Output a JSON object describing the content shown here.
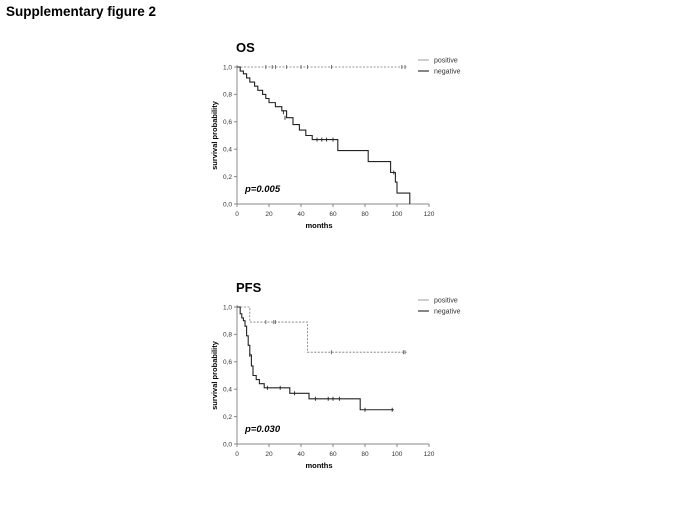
{
  "figure_title": "Supplementary figure 2",
  "chart_data": [
    {
      "type": "line",
      "title": "OS",
      "xlabel": "months",
      "ylabel": "survival probability",
      "xlim": [
        0,
        120
      ],
      "ylim": [
        0,
        1.0
      ],
      "x_ticks": [
        "0",
        "20",
        "40",
        "60",
        "80",
        "100",
        "120"
      ],
      "y_ticks": [
        "0,0",
        "0,2",
        "0,4",
        "0,6",
        "0,8",
        "1,0"
      ],
      "annotation": "p=0.005",
      "legend": [
        "positive",
        "negative"
      ],
      "legend_position": "top-right",
      "series": [
        {
          "name": "positive",
          "style": "dashed",
          "steps": [
            [
              0,
              1.0
            ],
            [
              106,
              1.0
            ]
          ],
          "censored": [
            [
              18,
              1.0
            ],
            [
              22,
              1.0
            ],
            [
              24,
              1.0
            ],
            [
              31,
              1.0
            ],
            [
              40,
              1.0
            ],
            [
              44,
              1.0
            ],
            [
              59,
              1.0
            ],
            [
              103,
              1.0
            ],
            [
              105,
              1.0
            ]
          ]
        },
        {
          "name": "negative",
          "style": "solid",
          "steps": [
            [
              0,
              1.0
            ],
            [
              2,
              0.97
            ],
            [
              4,
              0.95
            ],
            [
              6,
              0.92
            ],
            [
              8,
              0.89
            ],
            [
              11,
              0.86
            ],
            [
              13,
              0.83
            ],
            [
              16,
              0.8
            ],
            [
              18,
              0.77
            ],
            [
              20,
              0.74
            ],
            [
              24,
              0.71
            ],
            [
              28,
              0.68
            ],
            [
              31,
              0.63
            ],
            [
              35,
              0.58
            ],
            [
              39,
              0.54
            ],
            [
              43,
              0.5
            ],
            [
              47,
              0.47
            ],
            [
              58,
              0.47
            ],
            [
              63,
              0.39
            ],
            [
              81,
              0.39
            ],
            [
              82,
              0.31
            ],
            [
              95,
              0.31
            ],
            [
              96,
              0.23
            ],
            [
              99,
              0.16
            ],
            [
              100,
              0.08
            ],
            [
              107,
              0.08
            ],
            [
              108,
              0.0
            ]
          ],
          "censored": [
            [
              29,
              0.67
            ],
            [
              30,
              0.63
            ],
            [
              50,
              0.47
            ],
            [
              53,
              0.47
            ],
            [
              56,
              0.47
            ],
            [
              60,
              0.47
            ],
            [
              98,
              0.23
            ]
          ]
        }
      ]
    },
    {
      "type": "line",
      "title": "PFS",
      "xlabel": "months",
      "ylabel": "survival probability",
      "xlim": [
        0,
        120
      ],
      "ylim": [
        0,
        1.0
      ],
      "x_ticks": [
        "0",
        "20",
        "40",
        "60",
        "80",
        "100",
        "120"
      ],
      "y_ticks": [
        "0,0",
        "0,2",
        "0,4",
        "0,6",
        "0,8",
        "1,0"
      ],
      "annotation": "p=0.030",
      "legend": [
        "positive",
        "negative"
      ],
      "legend_position": "top-right",
      "series": [
        {
          "name": "positive",
          "style": "dashed",
          "steps": [
            [
              0,
              1.0
            ],
            [
              7,
              1.0
            ],
            [
              8,
              0.89
            ],
            [
              43,
              0.89
            ],
            [
              44,
              0.67
            ],
            [
              106,
              0.67
            ]
          ],
          "censored": [
            [
              18,
              0.89
            ],
            [
              23,
              0.89
            ],
            [
              24,
              0.89
            ],
            [
              59,
              0.67
            ],
            [
              104,
              0.67
            ],
            [
              105,
              0.67
            ]
          ]
        },
        {
          "name": "negative",
          "style": "solid",
          "steps": [
            [
              0,
              1.0
            ],
            [
              2,
              0.95
            ],
            [
              3,
              0.92
            ],
            [
              4,
              0.9
            ],
            [
              5,
              0.86
            ],
            [
              6,
              0.79
            ],
            [
              7,
              0.72
            ],
            [
              8,
              0.65
            ],
            [
              9,
              0.57
            ],
            [
              10,
              0.5
            ],
            [
              12,
              0.47
            ],
            [
              14,
              0.44
            ],
            [
              17,
              0.41
            ],
            [
              33,
              0.37
            ],
            [
              45,
              0.33
            ],
            [
              77,
              0.25
            ],
            [
              98,
              0.25
            ]
          ],
          "censored": [
            [
              8,
              0.65
            ],
            [
              19,
              0.41
            ],
            [
              27,
              0.41
            ],
            [
              36,
              0.37
            ],
            [
              49,
              0.33
            ],
            [
              57,
              0.33
            ],
            [
              60,
              0.33
            ],
            [
              64,
              0.33
            ],
            [
              80,
              0.25
            ],
            [
              97,
              0.25
            ]
          ]
        }
      ]
    }
  ]
}
